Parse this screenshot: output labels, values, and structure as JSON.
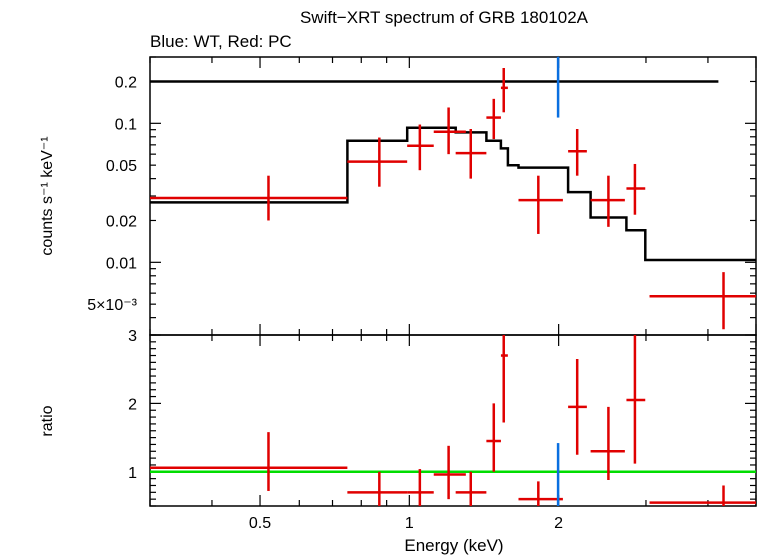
{
  "title": "Swift−XRT spectrum of GRB 180102A",
  "subtitle": "Blue: WT, Red: PC",
  "colors": {
    "wt": "#0a6fe0",
    "pc": "#e00000",
    "model": "#000000",
    "unity": "#00dd00"
  },
  "chart_data": [
    {
      "type": "scatter",
      "panel": "spectrum",
      "xscale": "log",
      "yscale": "log",
      "xlim": [
        0.3,
        5.0
      ],
      "ylim": [
        0.003,
        0.3
      ],
      "ylabel": "counts s⁻¹ keV⁻¹",
      "yticks": [
        {
          "v": 0.2,
          "label": "0.2"
        },
        {
          "v": 0.1,
          "label": "0.1"
        },
        {
          "v": 0.05,
          "label": "0.05"
        },
        {
          "v": 0.02,
          "label": "0.02"
        },
        {
          "v": 0.01,
          "label": "0.01"
        },
        {
          "v": 0.005,
          "label": "5×10⁻³"
        }
      ],
      "series": [
        {
          "points": [
            {
              "x": 0.52,
              "xlo": 0.3,
              "xhi": 0.75,
              "y": 0.029,
              "ylo": 0.02,
              "yhi": 0.042
            },
            {
              "x": 0.87,
              "xlo": 0.75,
              "xhi": 0.99,
              "y": 0.053,
              "ylo": 0.035,
              "yhi": 0.079
            },
            {
              "x": 1.05,
              "xlo": 0.99,
              "xhi": 1.12,
              "y": 0.069,
              "ylo": 0.046,
              "yhi": 0.098
            },
            {
              "x": 1.2,
              "xlo": 1.12,
              "xhi": 1.3,
              "y": 0.087,
              "ylo": 0.06,
              "yhi": 0.13
            },
            {
              "x": 1.33,
              "xlo": 1.24,
              "xhi": 1.43,
              "y": 0.061,
              "ylo": 0.04,
              "yhi": 0.091
            },
            {
              "x": 1.48,
              "xlo": 1.43,
              "xhi": 1.53,
              "y": 0.11,
              "ylo": 0.077,
              "yhi": 0.15
            },
            {
              "x": 1.55,
              "xlo": 1.53,
              "xhi": 1.58,
              "y": 0.18,
              "ylo": 0.12,
              "yhi": 0.25
            },
            {
              "x": 1.82,
              "xlo": 1.66,
              "xhi": 2.04,
              "y": 0.028,
              "ylo": 0.016,
              "yhi": 0.042
            },
            {
              "x": 2.18,
              "xlo": 2.09,
              "xhi": 2.28,
              "y": 0.063,
              "ylo": 0.042,
              "yhi": 0.091
            },
            {
              "x": 2.52,
              "xlo": 2.32,
              "xhi": 2.72,
              "y": 0.028,
              "ylo": 0.018,
              "yhi": 0.042
            },
            {
              "x": 2.85,
              "xlo": 2.74,
              "xhi": 2.99,
              "y": 0.034,
              "ylo": 0.022,
              "yhi": 0.051
            },
            {
              "x": 4.3,
              "xlo": 3.05,
              "xhi": 5.0,
              "y": 0.0057,
              "ylo": 0.0033,
              "yhi": 0.0085
            }
          ]
        },
        {
          "points": [
            {
              "x": 1.995,
              "xlo": 1.993,
              "xhi": 1.997,
              "y": 0.3,
              "ylo": 0.11,
              "yhi": 0.3
            }
          ]
        }
      ],
      "model_pc": [
        [
          0.3,
          0.027
        ],
        [
          0.75,
          0.027
        ],
        [
          0.75,
          0.075
        ],
        [
          0.99,
          0.075
        ],
        [
          0.99,
          0.093
        ],
        [
          1.24,
          0.093
        ],
        [
          1.24,
          0.086
        ],
        [
          1.43,
          0.086
        ],
        [
          1.43,
          0.075
        ],
        [
          1.53,
          0.075
        ],
        [
          1.53,
          0.066
        ],
        [
          1.58,
          0.066
        ],
        [
          1.58,
          0.05
        ],
        [
          1.66,
          0.05
        ],
        [
          1.66,
          0.048
        ],
        [
          2.09,
          0.048
        ],
        [
          2.09,
          0.032
        ],
        [
          2.32,
          0.032
        ],
        [
          2.32,
          0.021
        ],
        [
          2.74,
          0.021
        ],
        [
          2.74,
          0.017
        ],
        [
          2.99,
          0.017
        ],
        [
          2.99,
          0.0104
        ],
        [
          5.0,
          0.0104
        ]
      ],
      "model_wt": [
        [
          0.3,
          0.2
        ],
        [
          4.2,
          0.2
        ]
      ]
    },
    {
      "type": "scatter",
      "panel": "ratio",
      "xscale": "log",
      "xlim": [
        0.3,
        5.0
      ],
      "ylim": [
        0.5,
        3.0
      ],
      "xlabel": "Energy (keV)",
      "ylabel": "ratio",
      "xticks": [
        {
          "v": 0.5,
          "label": "0.5"
        },
        {
          "v": 1,
          "label": "1"
        },
        {
          "v": 2,
          "label": "2"
        }
      ],
      "yticks": [
        {
          "v": 1,
          "label": "1"
        },
        {
          "v": 2,
          "label": "2"
        },
        {
          "v": 3,
          "label": "3"
        }
      ],
      "unity": 1.0,
      "series": [
        {
          "points": [
            {
              "x": 0.52,
              "xlo": 0.3,
              "xhi": 0.75,
              "y": 1.06,
              "ylo": 0.72,
              "yhi": 1.58
            },
            {
              "x": 0.87,
              "xlo": 0.75,
              "xhi": 0.99,
              "y": 0.7,
              "ylo": 0.5,
              "yhi": 1.0
            },
            {
              "x": 1.05,
              "xlo": 0.99,
              "xhi": 1.12,
              "y": 0.7,
              "ylo": 0.5,
              "yhi": 1.04
            },
            {
              "x": 1.2,
              "xlo": 1.12,
              "xhi": 1.3,
              "y": 0.96,
              "ylo": 0.6,
              "yhi": 1.38
            },
            {
              "x": 1.33,
              "xlo": 1.24,
              "xhi": 1.43,
              "y": 0.7,
              "ylo": 0.5,
              "yhi": 1.0
            },
            {
              "x": 1.48,
              "xlo": 1.43,
              "xhi": 1.53,
              "y": 1.45,
              "ylo": 1.0,
              "yhi": 2.0
            },
            {
              "x": 1.55,
              "xlo": 1.53,
              "xhi": 1.58,
              "y": 2.7,
              "ylo": 1.72,
              "yhi": 3.0
            },
            {
              "x": 1.82,
              "xlo": 1.66,
              "xhi": 2.04,
              "y": 0.6,
              "ylo": 0.5,
              "yhi": 0.86
            },
            {
              "x": 2.18,
              "xlo": 2.09,
              "xhi": 2.28,
              "y": 1.95,
              "ylo": 1.25,
              "yhi": 2.65
            },
            {
              "x": 2.52,
              "xlo": 2.32,
              "xhi": 2.72,
              "y": 1.3,
              "ylo": 0.88,
              "yhi": 1.95
            },
            {
              "x": 2.85,
              "xlo": 2.74,
              "xhi": 2.99,
              "y": 2.05,
              "ylo": 1.12,
              "yhi": 3.0
            },
            {
              "x": 4.3,
              "xlo": 3.05,
              "xhi": 5.0,
              "y": 0.55,
              "ylo": 0.5,
              "yhi": 0.8
            }
          ]
        },
        {
          "points": [
            {
              "x": 1.995,
              "xlo": 1.993,
              "xhi": 1.997,
              "y": 0.9,
              "ylo": 0.5,
              "yhi": 1.42
            }
          ]
        }
      ]
    }
  ]
}
